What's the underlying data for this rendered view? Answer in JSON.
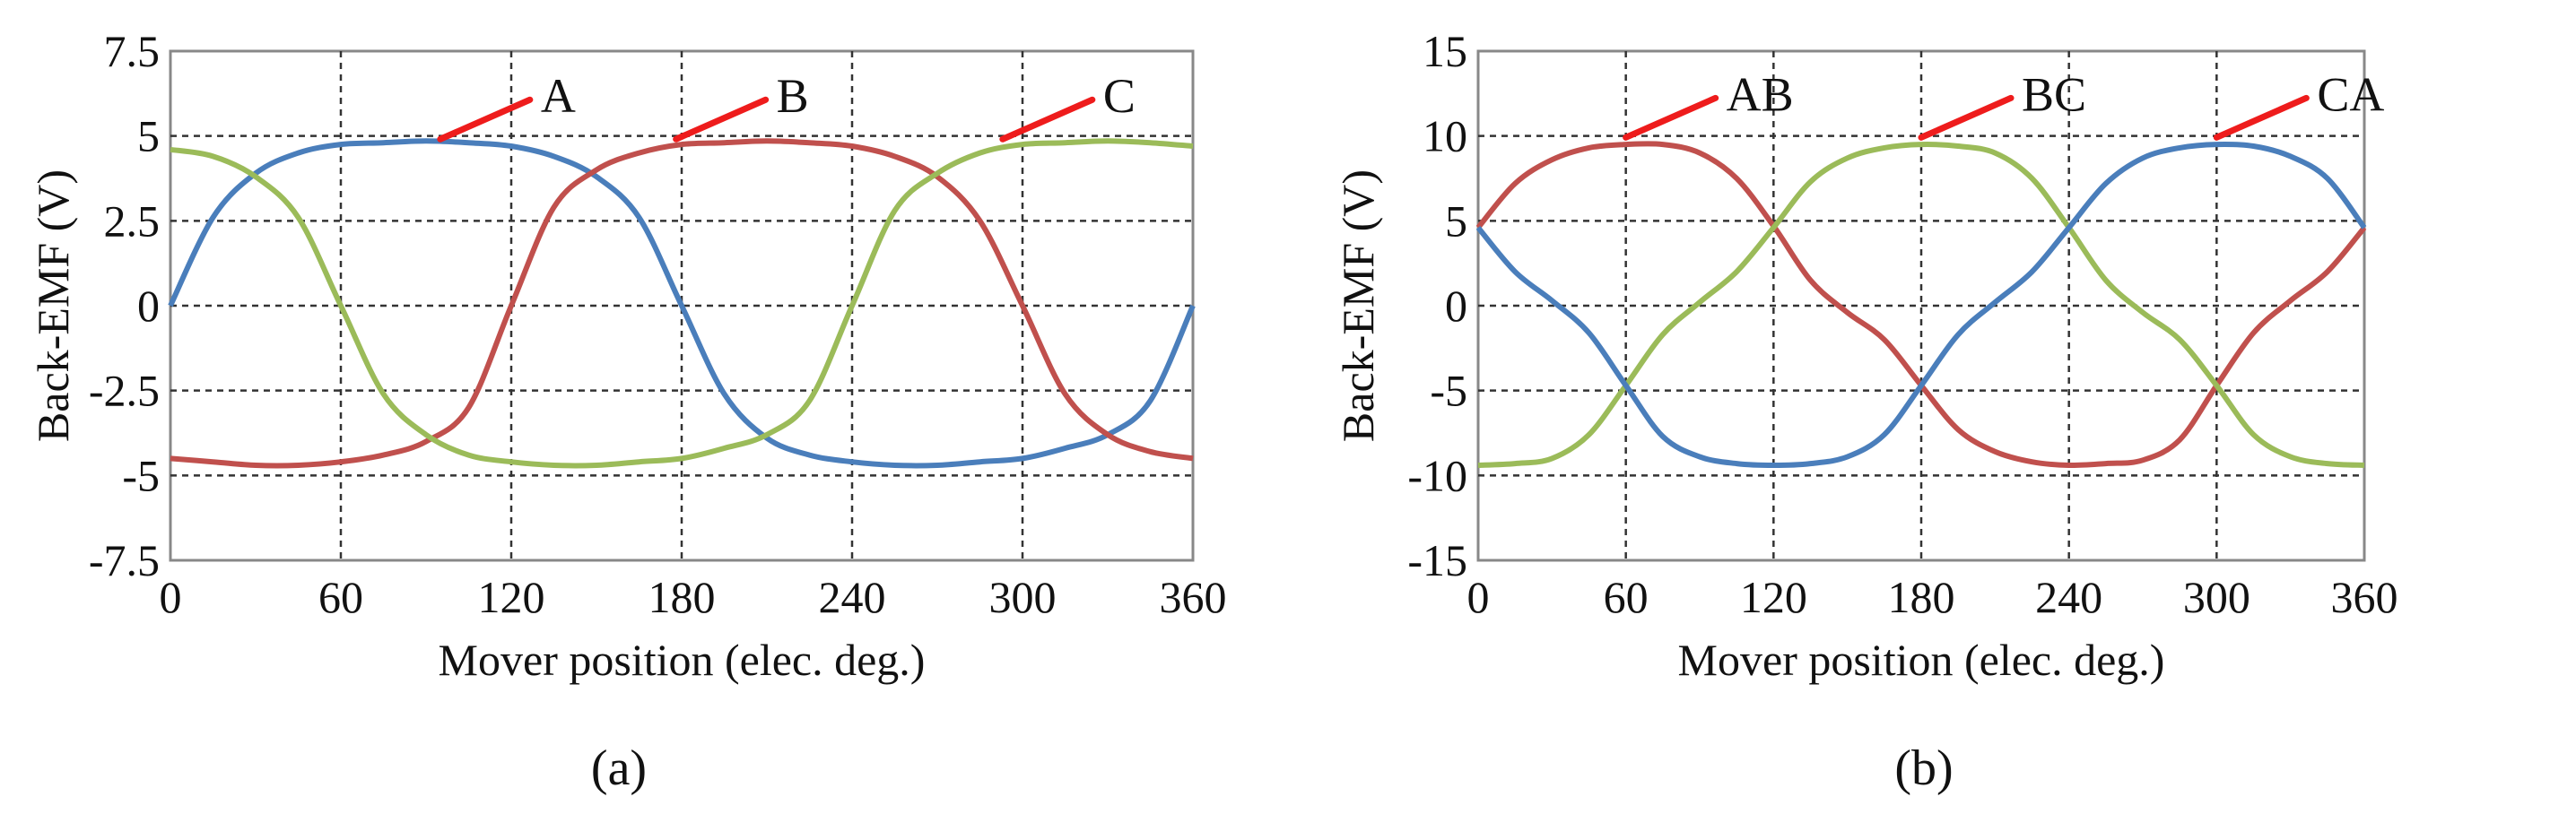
{
  "chart_data": [
    {
      "type": "line",
      "panel_label": "(a)",
      "xlabel": "Mover position (elec. deg.)",
      "ylabel": "Back-EMF (V)",
      "xlim": [
        0,
        360
      ],
      "ylim": [
        -7.5,
        7.5
      ],
      "xticks": [
        "0",
        "60",
        "120",
        "180",
        "240",
        "300",
        "360"
      ],
      "xtick_values": [
        0,
        60,
        120,
        180,
        240,
        300,
        360
      ],
      "yticks": [
        "7.5",
        "5",
        "2.5",
        "0",
        "-2.5",
        "-5",
        "-7.5"
      ],
      "ytick_values": [
        7.5,
        5,
        2.5,
        0,
        -2.5,
        -5,
        -7.5
      ],
      "grid": true,
      "x": [
        0,
        15,
        30,
        45,
        60,
        75,
        90,
        105,
        120,
        135,
        150,
        165,
        180,
        195,
        210,
        225,
        240,
        255,
        270,
        285,
        300,
        315,
        330,
        345,
        360
      ],
      "series": [
        {
          "name": "A",
          "color": "#4a7ebb",
          "values": [
            0,
            2.6,
            3.9,
            4.5,
            4.75,
            4.8,
            4.85,
            4.8,
            4.7,
            4.4,
            3.8,
            2.6,
            0,
            -2.6,
            -3.9,
            -4.4,
            -4.6,
            -4.7,
            -4.7,
            -4.6,
            -4.5,
            -4.2,
            -3.8,
            -2.8,
            0
          ],
          "label_text": "A",
          "label_anchor": [
            95,
            4.8
          ]
        },
        {
          "name": "B",
          "color": "#c0504d",
          "values": [
            -4.5,
            -4.6,
            -4.7,
            -4.7,
            -4.6,
            -4.4,
            -4.0,
            -3.0,
            0,
            2.9,
            4.0,
            4.5,
            4.75,
            4.8,
            4.85,
            4.8,
            4.7,
            4.4,
            3.8,
            2.5,
            0,
            -2.6,
            -3.8,
            -4.3,
            -4.5
          ]
        },
        {
          "name": "C",
          "color": "#9bbb59",
          "values": [
            4.6,
            4.4,
            3.8,
            2.6,
            0,
            -2.6,
            -3.8,
            -4.4,
            -4.6,
            -4.7,
            -4.7,
            -4.6,
            -4.5,
            -4.2,
            -3.8,
            -2.8,
            0,
            2.8,
            3.9,
            4.5,
            4.75,
            4.8,
            4.85,
            4.8,
            4.7
          ]
        }
      ],
      "annotations": [
        {
          "text": "A",
          "x": 95,
          "y": 4.8
        },
        {
          "text": "B",
          "x": 178,
          "y": 4.8
        },
        {
          "text": "C",
          "x": 293,
          "y": 4.8
        }
      ]
    },
    {
      "type": "line",
      "panel_label": "(b)",
      "xlabel": "Mover position (elec. deg.)",
      "ylabel": "Back-EMF (V)",
      "xlim": [
        0,
        360
      ],
      "ylim": [
        -15,
        15
      ],
      "xticks": [
        "0",
        "60",
        "120",
        "180",
        "240",
        "300",
        "360"
      ],
      "xtick_values": [
        0,
        60,
        120,
        180,
        240,
        300,
        360
      ],
      "yticks": [
        "15",
        "10",
        "5",
        "0",
        "-5",
        "-10",
        "-15"
      ],
      "ytick_values": [
        15,
        10,
        5,
        0,
        -5,
        -10,
        -15
      ],
      "grid": true,
      "x": [
        0,
        15,
        30,
        45,
        60,
        75,
        90,
        105,
        120,
        135,
        150,
        165,
        180,
        195,
        210,
        225,
        240,
        255,
        270,
        285,
        300,
        315,
        330,
        345,
        360
      ],
      "series": [
        {
          "name": "AB",
          "color": "#c0504d",
          "values": [
            4.6,
            7.2,
            8.6,
            9.3,
            9.5,
            9.5,
            9.0,
            7.5,
            4.7,
            1.5,
            -0.4,
            -2.0,
            -4.7,
            -7.3,
            -8.6,
            -9.2,
            -9.4,
            -9.3,
            -9.1,
            -7.9,
            -4.7,
            -1.6,
            0.3,
            2.0,
            4.6
          ]
        },
        {
          "name": "BC",
          "color": "#9bbb59",
          "values": [
            -9.4,
            -9.3,
            -9.0,
            -7.6,
            -4.7,
            -1.7,
            0.2,
            2.0,
            4.6,
            7.3,
            8.7,
            9.3,
            9.5,
            9.4,
            9.0,
            7.5,
            4.6,
            1.5,
            -0.4,
            -2.0,
            -4.7,
            -7.6,
            -8.9,
            -9.3,
            -9.4
          ]
        },
        {
          "name": "CA",
          "color": "#4a7ebb",
          "values": [
            4.6,
            2.0,
            0.3,
            -1.6,
            -4.7,
            -7.7,
            -8.9,
            -9.3,
            -9.4,
            -9.3,
            -8.9,
            -7.6,
            -4.7,
            -1.7,
            0.2,
            2.0,
            4.6,
            7.2,
            8.7,
            9.3,
            9.5,
            9.4,
            8.8,
            7.5,
            4.6
          ]
        }
      ],
      "annotations": [
        {
          "text": "AB",
          "x": 60,
          "y": 9.7
        },
        {
          "text": "BC",
          "x": 180,
          "y": 9.7
        },
        {
          "text": "CA",
          "x": 300,
          "y": 9.7
        }
      ]
    }
  ]
}
